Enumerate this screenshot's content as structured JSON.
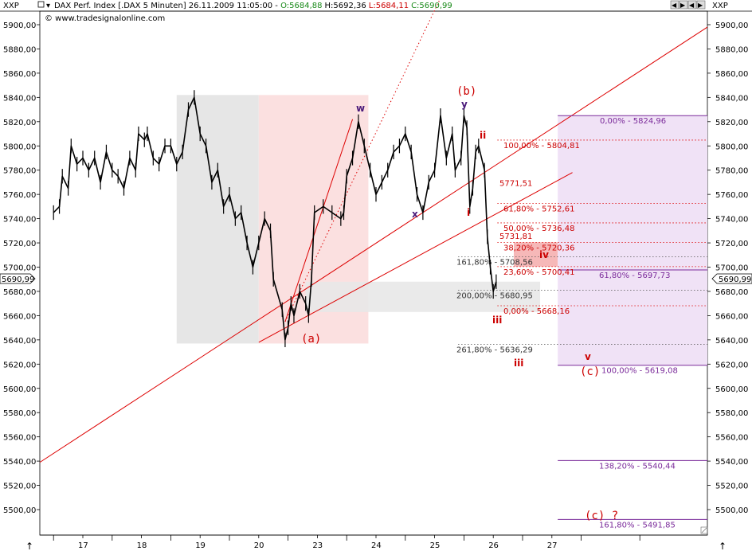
{
  "header": {
    "symbol_left": "XXP",
    "symbol_right": "XXP",
    "instrument": "DAX Perf. Index [.DAX  5 Minuten] 26.11.2009 11:05:00 - ",
    "open": "O:5684,88",
    "high": "H:5692,36",
    "low": "L:5684,11",
    "close": "C:5690,99",
    "copyright": "© www.tradesignalonline.com",
    "last_price": "5690,99"
  },
  "colors": {
    "price": "#000000",
    "trend": "#dd0000",
    "purple": "#7a2a9a",
    "grey_zone": "#e6e6e6",
    "pink_zone": "#fbe0e0",
    "purple_zone": "#f0e2f6",
    "salmon_zone": "#f6b8b8"
  },
  "chart_data": {
    "type": "line",
    "title": "DAX Perf. Index [.DAX  5 Minuten]",
    "ylim": [
      5480,
      5910
    ],
    "y_ticks": [
      "5900,00",
      "5880,00",
      "5860,00",
      "5840,00",
      "5820,00",
      "5800,00",
      "5780,00",
      "5760,00",
      "5740,00",
      "5720,00",
      "5700,00",
      "5680,00",
      "5660,00",
      "5640,00",
      "5620,00",
      "5600,00",
      "5580,00",
      "5560,00",
      "5540,00",
      "5520,00",
      "5500,00"
    ],
    "y_tick_values": [
      5900,
      5880,
      5860,
      5840,
      5820,
      5800,
      5780,
      5760,
      5740,
      5720,
      5700,
      5680,
      5660,
      5640,
      5620,
      5600,
      5580,
      5560,
      5540,
      5520,
      5500
    ],
    "x_ticks": [
      "17",
      "18",
      "19",
      "20",
      "23",
      "24",
      "25",
      "26",
      "27"
    ],
    "x_tick_values": [
      16.5,
      17.5,
      18.5,
      19.5,
      20.5,
      21.5,
      22.5,
      23.5,
      24.5
    ],
    "x_range": [
      16.0,
      26.2
    ],
    "series": [
      {
        "x": [
          16.0,
          16.1,
          16.15,
          16.25,
          16.3,
          16.4,
          16.5,
          16.6,
          16.7,
          16.8,
          16.9,
          17.0,
          17.1,
          17.2,
          17.3,
          17.4,
          17.45,
          17.55,
          17.6,
          17.7,
          17.8,
          17.9,
          18.0,
          18.1,
          18.2,
          18.3,
          18.4,
          18.5,
          18.6,
          18.7,
          18.8,
          18.9,
          19.0,
          19.1,
          19.2,
          19.3,
          19.4,
          19.5,
          19.6,
          19.7,
          19.75,
          19.9,
          19.95,
          20.0,
          20.05,
          20.1,
          20.2,
          20.3,
          20.35,
          20.4,
          20.45,
          20.6,
          20.75,
          20.9,
          20.95,
          21.0,
          21.1,
          21.2,
          21.3,
          21.4,
          21.5,
          21.6,
          21.7,
          21.8,
          21.9,
          22.0,
          22.1,
          22.2,
          22.3,
          22.4,
          22.5,
          22.6,
          22.7,
          22.8,
          22.85,
          22.95,
          23.0,
          23.05,
          23.1,
          23.15,
          23.2,
          23.25,
          23.35,
          23.4,
          23.45,
          23.5,
          23.55
        ],
        "values": [
          5745,
          5750,
          5775,
          5765,
          5800,
          5785,
          5790,
          5780,
          5790,
          5770,
          5795,
          5780,
          5775,
          5765,
          5790,
          5780,
          5810,
          5805,
          5810,
          5790,
          5785,
          5800,
          5800,
          5785,
          5795,
          5830,
          5840,
          5810,
          5800,
          5770,
          5780,
          5750,
          5760,
          5740,
          5745,
          5720,
          5700,
          5720,
          5740,
          5730,
          5690,
          5665,
          5640,
          5650,
          5670,
          5660,
          5680,
          5670,
          5660,
          5690,
          5745,
          5750,
          5745,
          5740,
          5745,
          5775,
          5790,
          5820,
          5800,
          5780,
          5760,
          5770,
          5780,
          5795,
          5800,
          5810,
          5795,
          5760,
          5745,
          5770,
          5780,
          5825,
          5790,
          5810,
          5780,
          5790,
          5825,
          5815,
          5750,
          5765,
          5795,
          5800,
          5780,
          5725,
          5700,
          5680,
          5688
        ]
      }
    ],
    "fib_levels": [
      {
        "label": "0,00% - 5824,96",
        "value": 5824.96
      },
      {
        "label": "100,00% - 5804,81",
        "value": 5804.81
      },
      {
        "label": "5771,51",
        "value": 5771.51
      },
      {
        "label": "61,80% - 5752,61",
        "value": 5752.61
      },
      {
        "label": "50,00% - 5736,48",
        "value": 5736.48
      },
      {
        "label": "5731,81",
        "value": 5731.81
      },
      {
        "label": "38,20% - 5720,36",
        "value": 5720.36
      },
      {
        "label": "161,80% - 5708,56",
        "value": 5708.56
      },
      {
        "label": "23,60% - 5700,41",
        "value": 5700.41
      },
      {
        "label": "61,80% - 5697,73",
        "value": 5697.73
      },
      {
        "label": "200,00% - 5680,95",
        "value": 5680.95
      },
      {
        "label": "0,00% - 5668,16",
        "value": 5668.16
      },
      {
        "label": "261,80% - 5636,29",
        "value": 5636.29
      },
      {
        "label": "100,00% - 5619,08",
        "value": 5619.08
      },
      {
        "label": "138,20% - 5540,44",
        "value": 5540.44
      },
      {
        "label": "161,80% - 5491,85",
        "value": 5491.85
      }
    ],
    "wave_labels": [
      "(a)",
      "(b)",
      "(c)",
      "(c) ?",
      "w",
      "x",
      "y",
      "i",
      "ii",
      "iii",
      "iii",
      "iv",
      "v"
    ]
  }
}
